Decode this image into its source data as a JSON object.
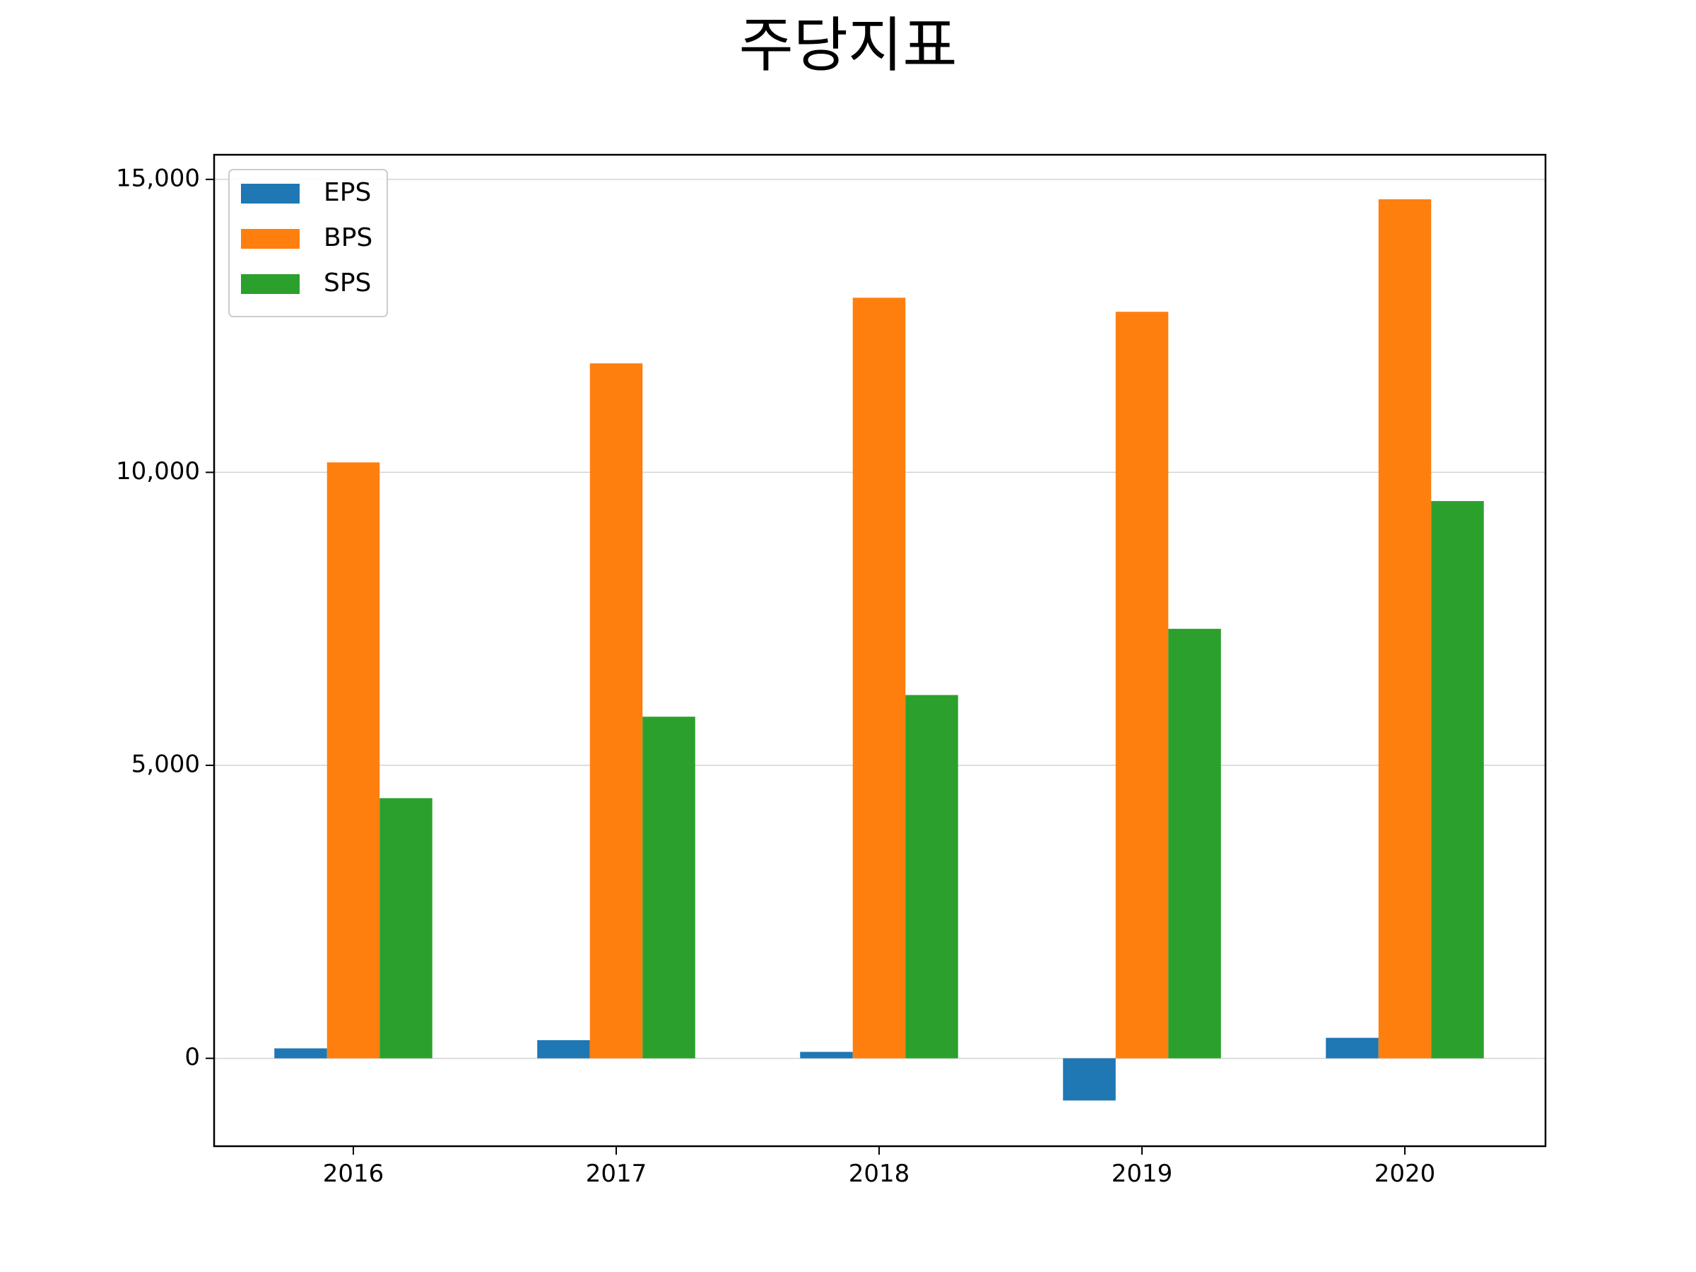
{
  "chart_data": {
    "type": "bar",
    "title": "주당지표",
    "xlabel": "",
    "ylabel": "",
    "categories": [
      "2016",
      "2017",
      "2018",
      "2019",
      "2020"
    ],
    "series": [
      {
        "name": "EPS",
        "color": "#1f77b4",
        "values": [
          170,
          310,
          110,
          -720,
          350
        ]
      },
      {
        "name": "BPS",
        "color": "#ff7f0e",
        "values": [
          10170,
          11860,
          12980,
          12740,
          14660
        ]
      },
      {
        "name": "SPS",
        "color": "#2ca02c",
        "values": [
          4440,
          5830,
          6200,
          7330,
          9510
        ]
      }
    ],
    "ylim": [
      -1500,
      15420
    ],
    "yticks": [
      0,
      5000,
      10000,
      15000
    ],
    "ytick_labels": [
      "0",
      "5,000",
      "10,000",
      "15,000"
    ],
    "grid": "horizontal",
    "legend": "top-left"
  }
}
